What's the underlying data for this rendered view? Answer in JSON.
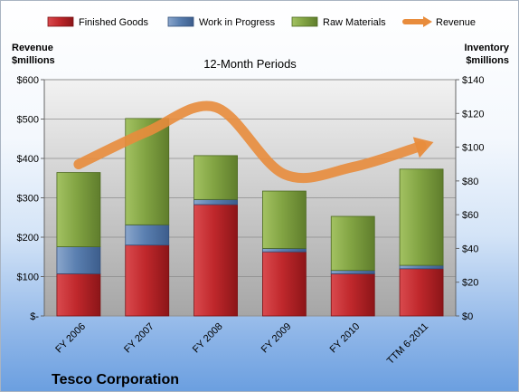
{
  "chart_data": {
    "type": "bar",
    "title": "12-Month Periods",
    "company": "Tesco Corporation",
    "categories": [
      "FY 2006",
      "FY 2007",
      "FY 2008",
      "FY 2009",
      "FY 2010",
      "TTM 6-2011"
    ],
    "series": [
      {
        "name": "Finished Goods",
        "axis": "right",
        "color": "#c0282c",
        "values": [
          25,
          42,
          66,
          38,
          25,
          28
        ]
      },
      {
        "name": "Work in Progress",
        "axis": "right",
        "color": "#5a7fb0",
        "values": [
          16,
          12,
          3,
          2,
          2,
          2
        ]
      },
      {
        "name": "Raw Materials",
        "axis": "right",
        "color": "#82a443",
        "values": [
          44,
          63,
          26,
          34,
          32,
          57
        ]
      },
      {
        "name": "Revenue",
        "axis": "left",
        "type": "line",
        "color": "#e88c3c",
        "values": [
          385,
          468,
          530,
          360,
          378,
          432
        ]
      }
    ],
    "left_axis": {
      "label_line1": "Revenue",
      "label_line2": "$millions",
      "min": 0,
      "max": 600,
      "step": 100,
      "tick_labels": [
        "$-",
        "$100",
        "$200",
        "$300",
        "$400",
        "$500",
        "$600"
      ]
    },
    "right_axis": {
      "label_line1": "Inventory",
      "label_line2": "$millions",
      "min": 0,
      "max": 140,
      "step": 20,
      "tick_labels": [
        "$0",
        "$20",
        "$40",
        "$60",
        "$80",
        "$100",
        "$120",
        "$140"
      ]
    },
    "grid": true,
    "legend_position": "top"
  }
}
